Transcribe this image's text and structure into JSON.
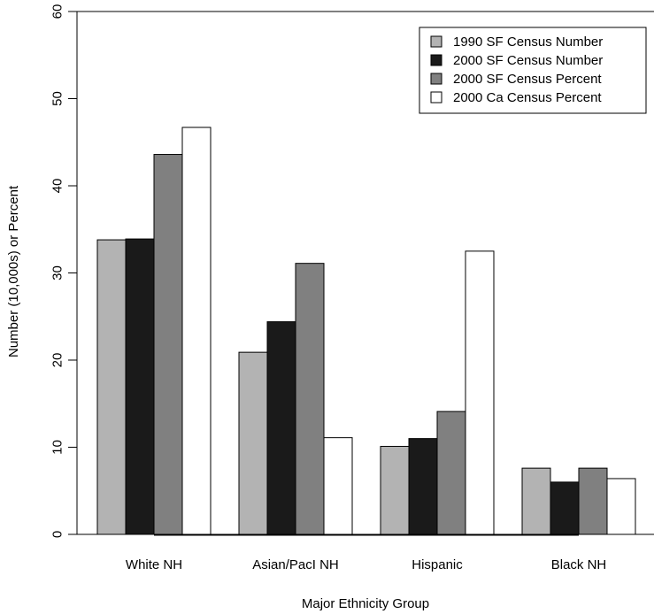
{
  "chart_data": {
    "type": "bar",
    "title": "",
    "xlabel": "Major Ethnicity Group",
    "ylabel": "Number (10,000s) or Percent",
    "ylim": [
      0,
      60
    ],
    "yticks": [
      "0",
      "10",
      "20",
      "30",
      "40",
      "50",
      "60"
    ],
    "categories": [
      "White NH",
      "Asian/PacI NH",
      "Hispanic",
      "Black NH"
    ],
    "series": [
      {
        "name": "1990 SF Census Number",
        "color": "#b3b3b3",
        "values": [
          33.8,
          20.9,
          10.1,
          7.6
        ]
      },
      {
        "name": "2000 SF Census Number",
        "color": "#1a1a1a",
        "values": [
          33.9,
          24.4,
          11.0,
          6.0
        ]
      },
      {
        "name": "2000 SF Census Percent",
        "color": "#808080",
        "values": [
          43.6,
          31.1,
          14.1,
          7.6
        ]
      },
      {
        "name": "2000 Ca Census Percent",
        "color": "#ffffff",
        "values": [
          46.7,
          11.1,
          32.5,
          6.4
        ]
      }
    ],
    "grid": false,
    "legend_position": "top-right"
  }
}
